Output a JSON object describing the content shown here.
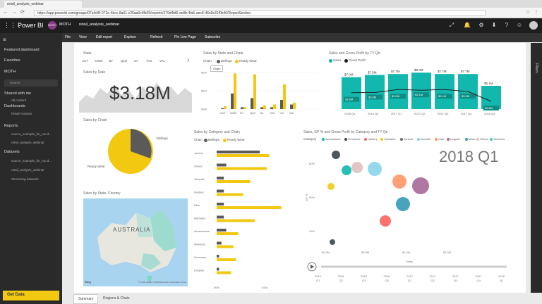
{
  "browser": {
    "tab_title": "retail_analysis_webinar",
    "url": "https://app.powerbi.com/groups/07a4d4f-072e-4bcc-8a61-c25aa6c4fb35/reports/279d4bf6-ac8b-4fa5-aec8-46e9c31f0b40/ReportSection"
  },
  "header": {
    "brand": "Power BI",
    "avatar": "MOTH",
    "workspace": "MOTH",
    "report": "retail_analysis_webinar"
  },
  "toolbar": {
    "file": "File",
    "view": "View",
    "edit_report": "Edit report",
    "explore": "Explore",
    "refresh": "Refresh",
    "pin_live": "Pin Live Page",
    "subscribe": "Subscribe"
  },
  "nav": {
    "featured": "Featured dashboard",
    "favorites": "Favorites",
    "moth": "MOTH",
    "search": "Search",
    "shared": "Shared with me",
    "shared_sub": "All content",
    "dashboards": "Dashboards",
    "dashboard_item": "Retail Analysis",
    "reports": "Reports",
    "report_1": "source_example_for_mo d...",
    "report_2": "retail_analysis_webinar",
    "datasets": "Datasets",
    "dataset_1": "source_example_for_mo d...",
    "dataset_2": "retail_analysis_webinar",
    "dataset_3": "Streaming datasets",
    "get_data": "Get Data"
  },
  "filters_label": "Filters",
  "pages": {
    "summary": "Summary",
    "regions": "Regions & Chain"
  },
  "colors": {
    "teal": "#12b8ae",
    "yellow": "#f2c811",
    "gray": "#5a5a5a",
    "dark": "#1e1e1e"
  },
  "slicer": {
    "title": "State",
    "items": [
      "ACT",
      "NSW",
      "NT",
      "QLD",
      "SA",
      "TAS",
      "VIC"
    ]
  },
  "kpi": {
    "title": "Sales by Date",
    "value": "$3.18M"
  },
  "pie": {
    "title": "Sales by Chain",
    "labels": [
      "Bellings",
      "Ready Wear"
    ]
  },
  "map": {
    "title": "Sales by State, Country",
    "label": "AUSTRALIA",
    "credit": "© 2018 HERE © 2018 Microsoft Corporation Terms",
    "brand": "Bing"
  },
  "chart_data": [
    {
      "type": "bar",
      "title": "Sales by State and Chain",
      "legend_title": "Chain",
      "legend": [
        "Bellings",
        "Ready Wear"
      ],
      "tooltip": "Chain",
      "ylabel_ticks": [
        "$0M",
        "$1M",
        "$2M"
      ],
      "categories": [
        "ACT",
        "NSW",
        "NT",
        "QLD",
        "SA",
        "TAS",
        "VIC",
        "WA"
      ],
      "series": [
        {
          "name": "Bellings",
          "values": [
            0.05,
            0.85,
            0.1,
            0.6,
            0.1,
            0.1,
            0.5,
            0.25
          ]
        },
        {
          "name": "Ready Wear",
          "values": [
            0.15,
            1.95,
            0.1,
            1.9,
            0.2,
            0.25,
            1.35,
            0.35
          ]
        }
      ]
    },
    {
      "type": "bar",
      "title": "Sales and Gross Profit by TY Qtr",
      "legend": [
        "Sales",
        "Gross Profit"
      ],
      "categories": [
        "2018 Q1",
        "2018 Q2",
        "2017 Q1",
        "2017 Q2",
        "2017 Q3",
        "2017 Q4",
        "2016 Q4"
      ],
      "values": [
        7.0,
        7.5,
        7.7,
        8.0,
        7.7,
        7.7,
        5.1
      ],
      "labels": [
        "$7.0M",
        "$7.5M",
        "$7.7M",
        "$8.0M",
        "$7.7M",
        "$7.7M",
        "$5.1M"
      ],
      "inner_labels": [
        "$3.6M",
        "$3.6M",
        "$3.0M",
        "$3.1M",
        "$3.1M",
        "$3.3M",
        "$2.8M"
      ]
    },
    {
      "type": "bar",
      "title": "Sales by Category and Chain",
      "legend_title": "Chain",
      "legend": [
        "Bellings",
        "Ready Wear"
      ],
      "categories": [
        "Juniors",
        "Shoes",
        "Juvenile",
        "Hosiery",
        "Kids",
        "Intimates",
        "Accessories",
        "Womens",
        "Groceries",
        "Lingerie"
      ],
      "x_ticks": [
        "$0M",
        "$1M"
      ],
      "series": [
        {
          "name": "Bellings",
          "values": [
            0.9,
            0.2,
            0.15,
            0.15,
            0.15,
            0.15,
            0.2,
            0.1,
            0.05,
            0.05
          ]
        },
        {
          "name": "Ready Wear",
          "values": [
            1.1,
            1.05,
            0.7,
            0.55,
            1.35,
            0.8,
            0.45,
            0.35,
            0.4,
            0.3
          ]
        }
      ]
    },
    {
      "type": "scatter",
      "title": "Sales, GP % and Gross Profit by Category and TY Qtr",
      "legend_title": "Category",
      "legend": [
        "Accessories",
        "Groceries",
        "Hosiery",
        "Intimates",
        "Juniors",
        "Juvenile",
        "Kids",
        "Lingerie",
        "Mens",
        "Shoes",
        "Womens"
      ],
      "big_label": "2018 Q1",
      "y_ticks": [
        "60%",
        "50%",
        "40%"
      ],
      "x_ticks": [
        "$0.0M",
        "$0.5M",
        "$1.0M",
        "$1.5M"
      ],
      "xlabel": "Sales",
      "ylabel": "GP %",
      "play_axis": [
        "2016 Q1",
        "2016 Q2",
        "2016 Q3",
        "2016 Q4",
        "2017 Q1",
        "2017 Q2",
        "2017 Q3",
        "2017 Q4",
        "2018 Q1"
      ]
    }
  ]
}
